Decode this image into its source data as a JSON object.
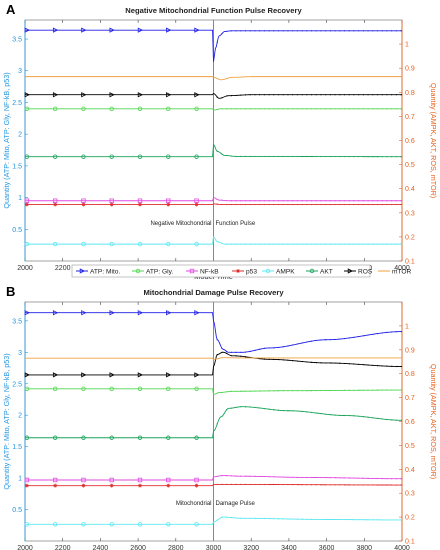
{
  "chart_data": [
    {
      "panel_label": "A",
      "type": "line",
      "title": "Negative Mitochondrial Function Pulse Recovery",
      "xlabel": "Model Time",
      "ylabel_left": "Quantity (ATP: Mito, ATP: Gly, NF-kB, p53)",
      "ylabel_right": "Quantity (AMPK, AKT, ROS, mTOR)",
      "xlim": [
        2000,
        4000
      ],
      "xticks": [
        2000,
        2200,
        2400,
        2600,
        2800,
        3000,
        3200,
        3400,
        3600,
        3800,
        4000
      ],
      "ylim_left": [
        0,
        3.8
      ],
      "yticks_left": [
        0.5,
        1,
        1.5,
        2,
        2.5,
        3,
        3.5
      ],
      "ylim_right": [
        0.1,
        1.1
      ],
      "yticks_right": [
        0.1,
        0.2,
        0.3,
        0.4,
        0.5,
        0.6,
        0.7,
        0.8,
        0.9,
        1
      ],
      "annotation": {
        "left": "Negative Mitochondrial",
        "right": "Function Pulse",
        "x": 3000,
        "y_right": 0.25
      },
      "grid": false,
      "series": [
        {
          "name": "ATP: Mito.",
          "axis": "left",
          "color": "#1f1fe6",
          "marker": "triangle-right",
          "points": [
            [
              2000,
              3.64
            ],
            [
              2999,
              3.64
            ],
            [
              3000,
              3.14
            ],
            [
              3010,
              3.35
            ],
            [
              3030,
              3.55
            ],
            [
              3060,
              3.62
            ],
            [
              3100,
              3.63
            ],
            [
              4000,
              3.63
            ]
          ]
        },
        {
          "name": "ATP: Gly.",
          "axis": "left",
          "color": "#4fd64f",
          "marker": "circle",
          "points": [
            [
              2000,
              2.4
            ],
            [
              2999,
              2.4
            ],
            [
              3000,
              2.38
            ],
            [
              3040,
              2.4
            ],
            [
              4000,
              2.4
            ]
          ]
        },
        {
          "name": "NF-kB",
          "axis": "left",
          "color": "#e24ae2",
          "marker": "square",
          "points": [
            [
              2000,
              0.95
            ],
            [
              2999,
              0.95
            ],
            [
              3000,
              1.0
            ],
            [
              3030,
              0.96
            ],
            [
              3080,
              0.95
            ],
            [
              4000,
              0.95
            ]
          ]
        },
        {
          "name": "p53",
          "axis": "left",
          "color": "#e02a2a",
          "marker": "asterisk",
          "points": [
            [
              2000,
              0.89
            ],
            [
              2999,
              0.89
            ],
            [
              3000,
              0.9
            ],
            [
              3040,
              0.89
            ],
            [
              4000,
              0.89
            ]
          ]
        },
        {
          "name": "AMPK",
          "axis": "right",
          "color": "#5de8f0",
          "marker": "circle",
          "points": [
            [
              2000,
              0.17
            ],
            [
              2999,
              0.17
            ],
            [
              3000,
              0.2
            ],
            [
              3020,
              0.18
            ],
            [
              3060,
              0.17
            ],
            [
              4000,
              0.17
            ]
          ]
        },
        {
          "name": "AKT",
          "axis": "right",
          "color": "#19a35a",
          "marker": "circle",
          "points": [
            [
              2000,
              0.533
            ],
            [
              2999,
              0.533
            ],
            [
              3000,
              0.583
            ],
            [
              3020,
              0.555
            ],
            [
              3060,
              0.538
            ],
            [
              3120,
              0.534
            ],
            [
              4000,
              0.533
            ]
          ]
        },
        {
          "name": "ROS",
          "axis": "right",
          "color": "#000000",
          "marker": "triangle-right",
          "points": [
            [
              2000,
              0.79
            ],
            [
              2999,
              0.79
            ],
            [
              3000,
              0.795
            ],
            [
              3030,
              0.775
            ],
            [
              3080,
              0.786
            ],
            [
              3200,
              0.79
            ],
            [
              4000,
              0.79
            ]
          ]
        },
        {
          "name": "mTOR",
          "axis": "right",
          "color": "#f0a040",
          "marker": "none",
          "points": [
            [
              2000,
              0.865
            ],
            [
              2999,
              0.865
            ],
            [
              3000,
              0.862
            ],
            [
              3040,
              0.852
            ],
            [
              3100,
              0.862
            ],
            [
              3200,
              0.865
            ],
            [
              4000,
              0.865
            ]
          ]
        }
      ]
    },
    {
      "panel_label": "B",
      "type": "line",
      "title": "Mitochondrial Damage Pulse Recovery",
      "xlabel": "Model Time",
      "ylabel_left": "Quantity (ATP: Mito, ATP: Gly, NF-kB, p53)",
      "ylabel_right": "Quantity (AMPK, AKT, ROS, mTOR)",
      "xlim": [
        2000,
        4000
      ],
      "xticks": [
        2000,
        2200,
        2400,
        2600,
        2800,
        3000,
        3200,
        3400,
        3600,
        3800,
        4000
      ],
      "ylim_left": [
        0,
        3.8
      ],
      "yticks_left": [
        0.5,
        1,
        1.5,
        2,
        2.5,
        3,
        3.5
      ],
      "ylim_right": [
        0.1,
        1.1
      ],
      "yticks_right": [
        0.1,
        0.2,
        0.3,
        0.4,
        0.5,
        0.6,
        0.7,
        0.8,
        0.9,
        1
      ],
      "annotation": {
        "left": "Mitochondrial",
        "right": "Damage Pulse",
        "x": 3000,
        "y_right": 0.25
      },
      "grid": false,
      "series": [
        {
          "name": "ATP: Mito.",
          "axis": "left",
          "color": "#1f1fe6",
          "marker": "triangle-right",
          "points": [
            [
              2000,
              3.63
            ],
            [
              2999,
              3.63
            ],
            [
              3000,
              3.5
            ],
            [
              3020,
              3.2
            ],
            [
              3050,
              3.05
            ],
            [
              3080,
              3.0
            ],
            [
              3150,
              3.0
            ],
            [
              3300,
              3.07
            ],
            [
              3600,
              3.2
            ],
            [
              4000,
              3.33
            ]
          ]
        },
        {
          "name": "ATP: Gly.",
          "axis": "left",
          "color": "#4fd64f",
          "marker": "circle",
          "points": [
            [
              2000,
              2.42
            ],
            [
              2999,
              2.42
            ],
            [
              3000,
              2.33
            ],
            [
              3030,
              2.36
            ],
            [
              3100,
              2.38
            ],
            [
              3400,
              2.39
            ],
            [
              4000,
              2.4
            ]
          ]
        },
        {
          "name": "NF-kB",
          "axis": "left",
          "color": "#e24ae2",
          "marker": "square",
          "points": [
            [
              2000,
              0.97
            ],
            [
              2999,
              0.97
            ],
            [
              3000,
              1.02
            ],
            [
              3050,
              1.04
            ],
            [
              3150,
              1.03
            ],
            [
              3500,
              1.01
            ],
            [
              4000,
              0.99
            ]
          ]
        },
        {
          "name": "p53",
          "axis": "left",
          "color": "#e02a2a",
          "marker": "asterisk",
          "points": [
            [
              2000,
              0.88
            ],
            [
              2999,
              0.88
            ],
            [
              3000,
              0.9
            ],
            [
              3080,
              0.9
            ],
            [
              4000,
              0.89
            ]
          ]
        },
        {
          "name": "AMPK",
          "axis": "right",
          "color": "#5de8f0",
          "marker": "circle",
          "points": [
            [
              2000,
              0.17
            ],
            [
              2999,
              0.17
            ],
            [
              3000,
              0.18
            ],
            [
              3050,
              0.2
            ],
            [
              3150,
              0.195
            ],
            [
              3600,
              0.19
            ],
            [
              4000,
              0.188
            ]
          ]
        },
        {
          "name": "AKT",
          "axis": "right",
          "color": "#19a35a",
          "marker": "circle",
          "points": [
            [
              2000,
              0.532
            ],
            [
              2999,
              0.532
            ],
            [
              3000,
              0.56
            ],
            [
              3040,
              0.62
            ],
            [
              3080,
              0.655
            ],
            [
              3150,
              0.662
            ],
            [
              3400,
              0.645
            ],
            [
              3700,
              0.625
            ],
            [
              4000,
              0.605
            ]
          ]
        },
        {
          "name": "ROS",
          "axis": "right",
          "color": "#000000",
          "marker": "triangle-right",
          "points": [
            [
              2000,
              0.795
            ],
            [
              2999,
              0.795
            ],
            [
              3000,
              0.83
            ],
            [
              3020,
              0.88
            ],
            [
              3050,
              0.89
            ],
            [
              3100,
              0.875
            ],
            [
              3300,
              0.86
            ],
            [
              3600,
              0.845
            ],
            [
              4000,
              0.83
            ]
          ]
        },
        {
          "name": "mTOR",
          "axis": "right",
          "color": "#f0a040",
          "marker": "none",
          "points": [
            [
              2000,
              0.865
            ],
            [
              2999,
              0.865
            ],
            [
              3000,
              0.86
            ],
            [
              3050,
              0.867
            ],
            [
              3150,
              0.866
            ],
            [
              4000,
              0.866
            ]
          ]
        }
      ]
    }
  ]
}
